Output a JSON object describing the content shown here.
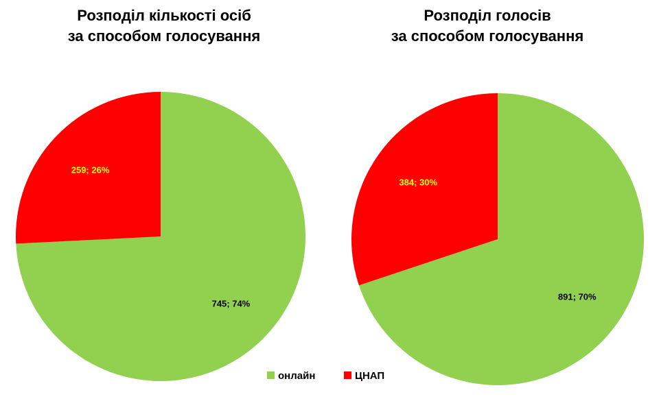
{
  "colors": {
    "online": "#92d050",
    "cnap": "#ff0000",
    "label_on_red": "#ffff00",
    "label_on_green": "#000000"
  },
  "legend": [
    {
      "name": "онлайн",
      "color": "#92d050"
    },
    {
      "name": "ЦНАП",
      "color": "#ff0000"
    }
  ],
  "chart_data": [
    {
      "type": "pie",
      "title_lines": [
        "Розподіл кількості осіб",
        "за способом голосування"
      ],
      "categories": [
        "онлайн",
        "ЦНАП"
      ],
      "values": [
        745,
        259
      ],
      "data_labels": [
        "745; 74%",
        "259; 26%"
      ]
    },
    {
      "type": "pie",
      "title_lines": [
        "Розподіл голосів",
        "за способом голосування"
      ],
      "categories": [
        "онлайн",
        "ЦНАП"
      ],
      "values": [
        891,
        384
      ],
      "data_labels": [
        "891; 70%",
        "384; 30%"
      ]
    }
  ]
}
